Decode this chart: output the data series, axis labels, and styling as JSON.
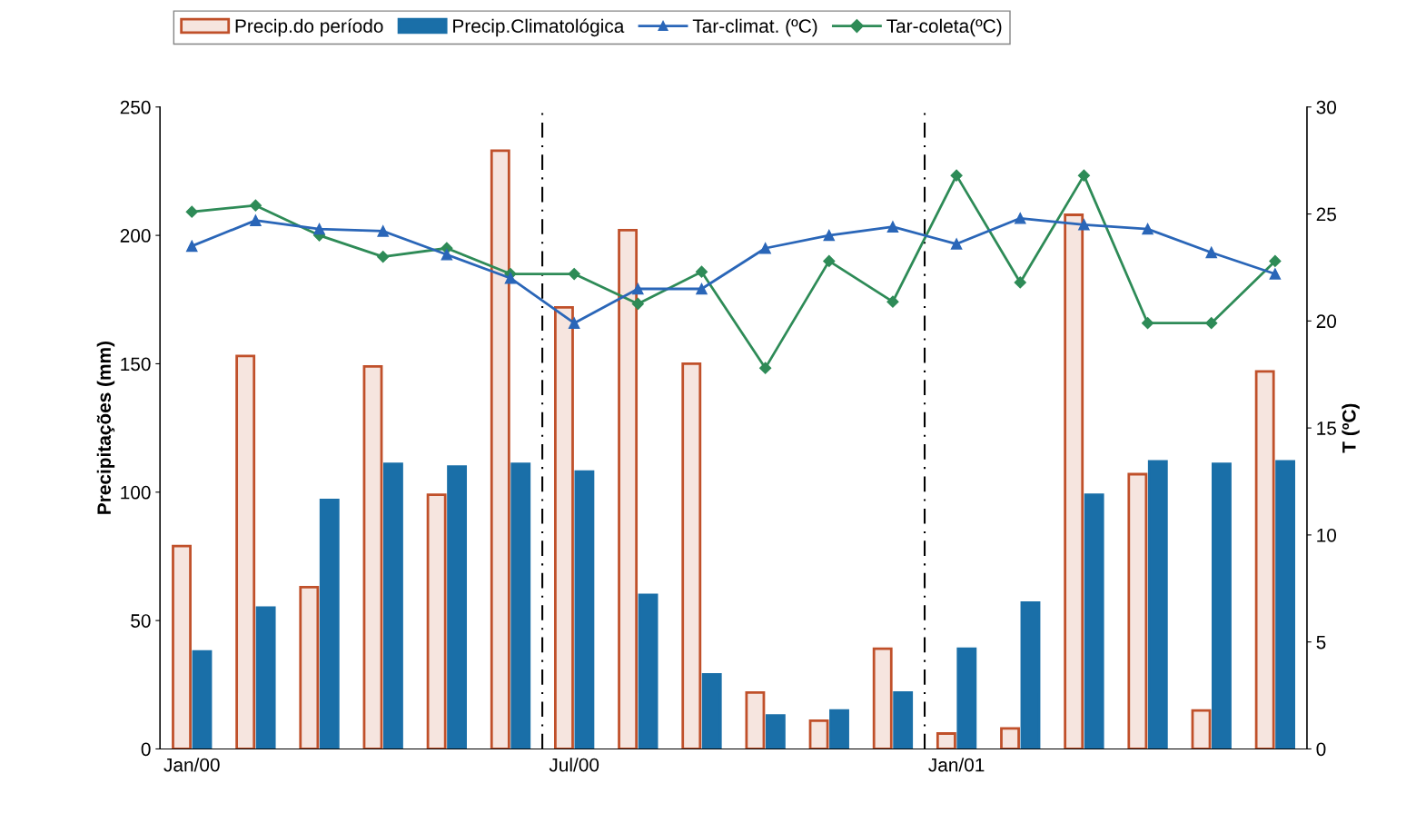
{
  "chart_data": {
    "type": "bar",
    "categories": [
      "Jan/00",
      null,
      null,
      null,
      null,
      null,
      "Jul/00",
      null,
      null,
      null,
      null,
      null,
      "Jan/01",
      null,
      null,
      null,
      null,
      null
    ],
    "ylabel": "Precipitações (mm)",
    "y2label": "T (ºC)",
    "ylim": [
      0,
      250
    ],
    "yticks": [
      0,
      50,
      100,
      150,
      200,
      250
    ],
    "y2lim": [
      0,
      30
    ],
    "y2ticks": [
      0,
      5,
      10,
      15,
      20,
      25,
      30
    ],
    "grid": false,
    "legend": "top",
    "series": [
      {
        "name": "Precip.do período",
        "type": "bar",
        "color": "#c0502a",
        "values": [
          79,
          153,
          63,
          149,
          99,
          233,
          172,
          202,
          150,
          22,
          11,
          39,
          6,
          8,
          208,
          107,
          15,
          147
        ]
      },
      {
        "name": "Precip.Climatológica",
        "type": "bar",
        "color": "#1a6fa8",
        "values": [
          38,
          55,
          97,
          111,
          110,
          111,
          108,
          60,
          29,
          13,
          15,
          22,
          39,
          57,
          99,
          112,
          111,
          112
        ]
      },
      {
        "name": "Tar-climat. (ºC)",
        "type": "line",
        "axis": "y2",
        "marker": "triangle",
        "color": "#2a66b8",
        "values": [
          23.5,
          24.7,
          24.3,
          24.2,
          23.1,
          22.0,
          19.9,
          21.5,
          21.5,
          23.4,
          24.0,
          24.4,
          23.6,
          24.8,
          24.5,
          24.3,
          23.2,
          22.2
        ]
      },
      {
        "name": "Tar-coleta(ºC)",
        "type": "line",
        "axis": "y2",
        "marker": "diamond",
        "color": "#2e8b57",
        "values": [
          25.1,
          25.4,
          24.0,
          23.0,
          23.4,
          22.2,
          22.2,
          20.8,
          22.3,
          17.8,
          22.8,
          20.9,
          26.8,
          21.8,
          26.8,
          19.9,
          19.9,
          22.8
        ]
      }
    ]
  }
}
